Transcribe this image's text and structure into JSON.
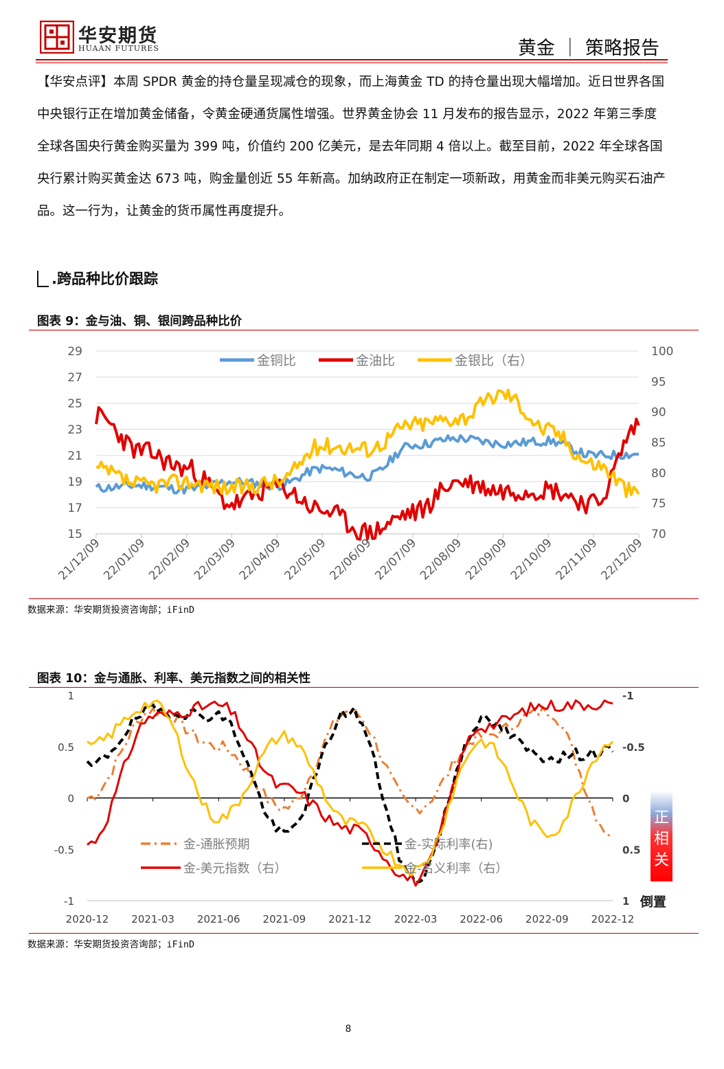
{
  "header": {
    "brand_cn": "华安期货",
    "brand_en": "HUAAN FUTURES",
    "report": "黄金 ｜ 策略报告",
    "accent": "#c00000"
  },
  "paragraph": "【华安点评】本周 SPDR 黄金的持仓量呈现减仓的现象，而上海黄金 TD 的持仓量出现大幅增加。近日世界各国中央银行正在增加黄金储备，令黄金硬通货属性增强。世界黄金协会 11 月发布的报告显示，2022 年第三季度全球各国央行黄金购买量为 399 吨，价值约 200 亿美元，是去年同期 4 倍以上。截至目前，2022 年全球各国央行累计购买黄金达 673 吨，购金量创近 55 年新高。加纳政府正在制定一项新政，用黄金而非美元购买石油产品。这一行为，让黄金的货币属性再度提升。",
  "section_title": ".跨品种比价跟踪",
  "figure9": {
    "title": "图表 9：金与油、铜、银间跨品种比价",
    "source": "数据来源：华安期货投资咨询部；iFinD"
  },
  "figure10": {
    "title": "图表 10：金与通胀、利率、美元指数之间的相关性",
    "source": "数据来源：华安期货投资咨询部；iFinD"
  },
  "page_number": "8",
  "chart_data": [
    {
      "type": "line",
      "x": [
        "21/12/09",
        "22/01/09",
        "22/02/09",
        "22/03/09",
        "22/04/09",
        "22/05/09",
        "22/06/09",
        "22/07/09",
        "22/08/09",
        "22/09/09",
        "22/10/09",
        "22/11/09",
        "22/12/09"
      ],
      "ylim": [
        15,
        29
      ],
      "yticks": [
        15,
        17,
        19,
        21,
        23,
        25,
        27,
        29
      ],
      "y2lim": [
        70,
        100
      ],
      "y2ticks": [
        70,
        75,
        80,
        85,
        90,
        95,
        100
      ],
      "legend_position": "top",
      "series": [
        {
          "name": "金铜比",
          "color": "#5b9bd5",
          "axis": "left",
          "values": [
            18.5,
            18.7,
            18.4,
            19.0,
            18.7,
            20.0,
            19.4,
            21.8,
            22.3,
            21.9,
            22.1,
            21.0,
            21.1
          ]
        },
        {
          "name": "金油比",
          "color": "#e00000",
          "axis": "left",
          "values": [
            24.0,
            21.3,
            20.0,
            17.3,
            18.6,
            16.8,
            15.1,
            16.6,
            19.0,
            18.3,
            18.4,
            17.3,
            23.3
          ]
        },
        {
          "name": "金银比（右）",
          "color": "#ffc000",
          "axis": "right",
          "values": [
            80.5,
            78.0,
            78.5,
            77.5,
            78.5,
            84.5,
            84.0,
            88.0,
            89.0,
            93.0,
            87.0,
            81.5,
            76.5
          ]
        }
      ]
    },
    {
      "type": "line",
      "x": [
        "2020-12",
        "2021-03",
        "2021-06",
        "2021-09",
        "2021-12",
        "2022-03",
        "2022-06",
        "2022-09",
        "2022-12"
      ],
      "ylim": [
        -1,
        1
      ],
      "yticks": [
        1,
        0.5,
        0,
        -0.5,
        -1
      ],
      "y2ticks": [
        "-1",
        "-0.5",
        "0",
        "0.5",
        "1"
      ],
      "y2label": "倒置",
      "badge": "正相关",
      "legend_position": "bottom",
      "series": [
        {
          "name": "金-通胀预期",
          "color": "#ed7d31",
          "dash": "dashdot",
          "values": [
            0.0,
            0.85,
            0.5,
            -0.1,
            0.85,
            -0.1,
            0.6,
            0.85,
            -0.35
          ]
        },
        {
          "name": "金-实际利率(右)",
          "color": "#000000",
          "dash": "dash",
          "values": [
            0.3,
            0.85,
            0.8,
            -0.35,
            0.85,
            -0.8,
            0.75,
            0.4,
            0.45
          ]
        },
        {
          "name": "金-美元指数（右）",
          "color": "#e00000",
          "dash": "solid",
          "values": [
            -0.45,
            0.8,
            0.9,
            0.1,
            -0.3,
            -0.8,
            0.7,
            0.9,
            0.92
          ]
        },
        {
          "name": "金-名义利率（右）",
          "color": "#ffc000",
          "dash": "solid",
          "values": [
            0.5,
            0.92,
            -0.2,
            0.6,
            -0.25,
            -0.7,
            0.55,
            -0.35,
            0.55
          ]
        }
      ]
    }
  ]
}
